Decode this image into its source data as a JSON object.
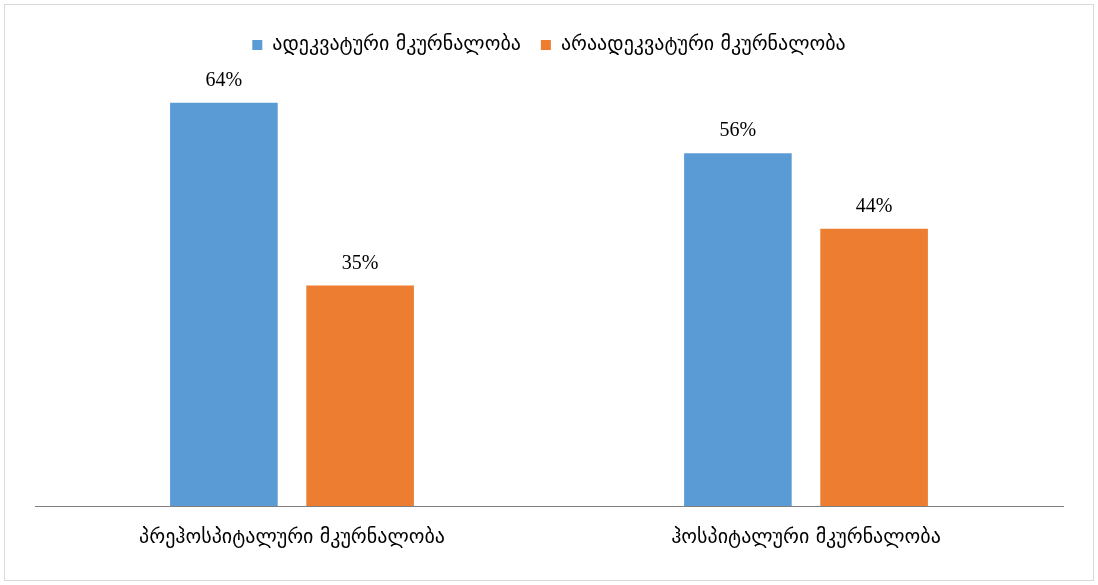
{
  "chart_data": {
    "type": "bar",
    "categories": [
      "პრეჰოსპიტალური მკურნალობა",
      "ჰოსპიტალური მკურნალობა"
    ],
    "series": [
      {
        "name": "ადეკვატური მკურნალობა",
        "color": "#5b9bd5",
        "values": [
          64,
          56
        ],
        "value_labels": [
          "64%",
          "56%"
        ]
      },
      {
        "name": "არაადეკვატური მკურნალობა",
        "color": "#ed7d31",
        "values": [
          35,
          44
        ],
        "value_labels": [
          "35%",
          "44%"
        ]
      }
    ],
    "legend": "top",
    "grid": false,
    "tick_labels": "x"
  }
}
